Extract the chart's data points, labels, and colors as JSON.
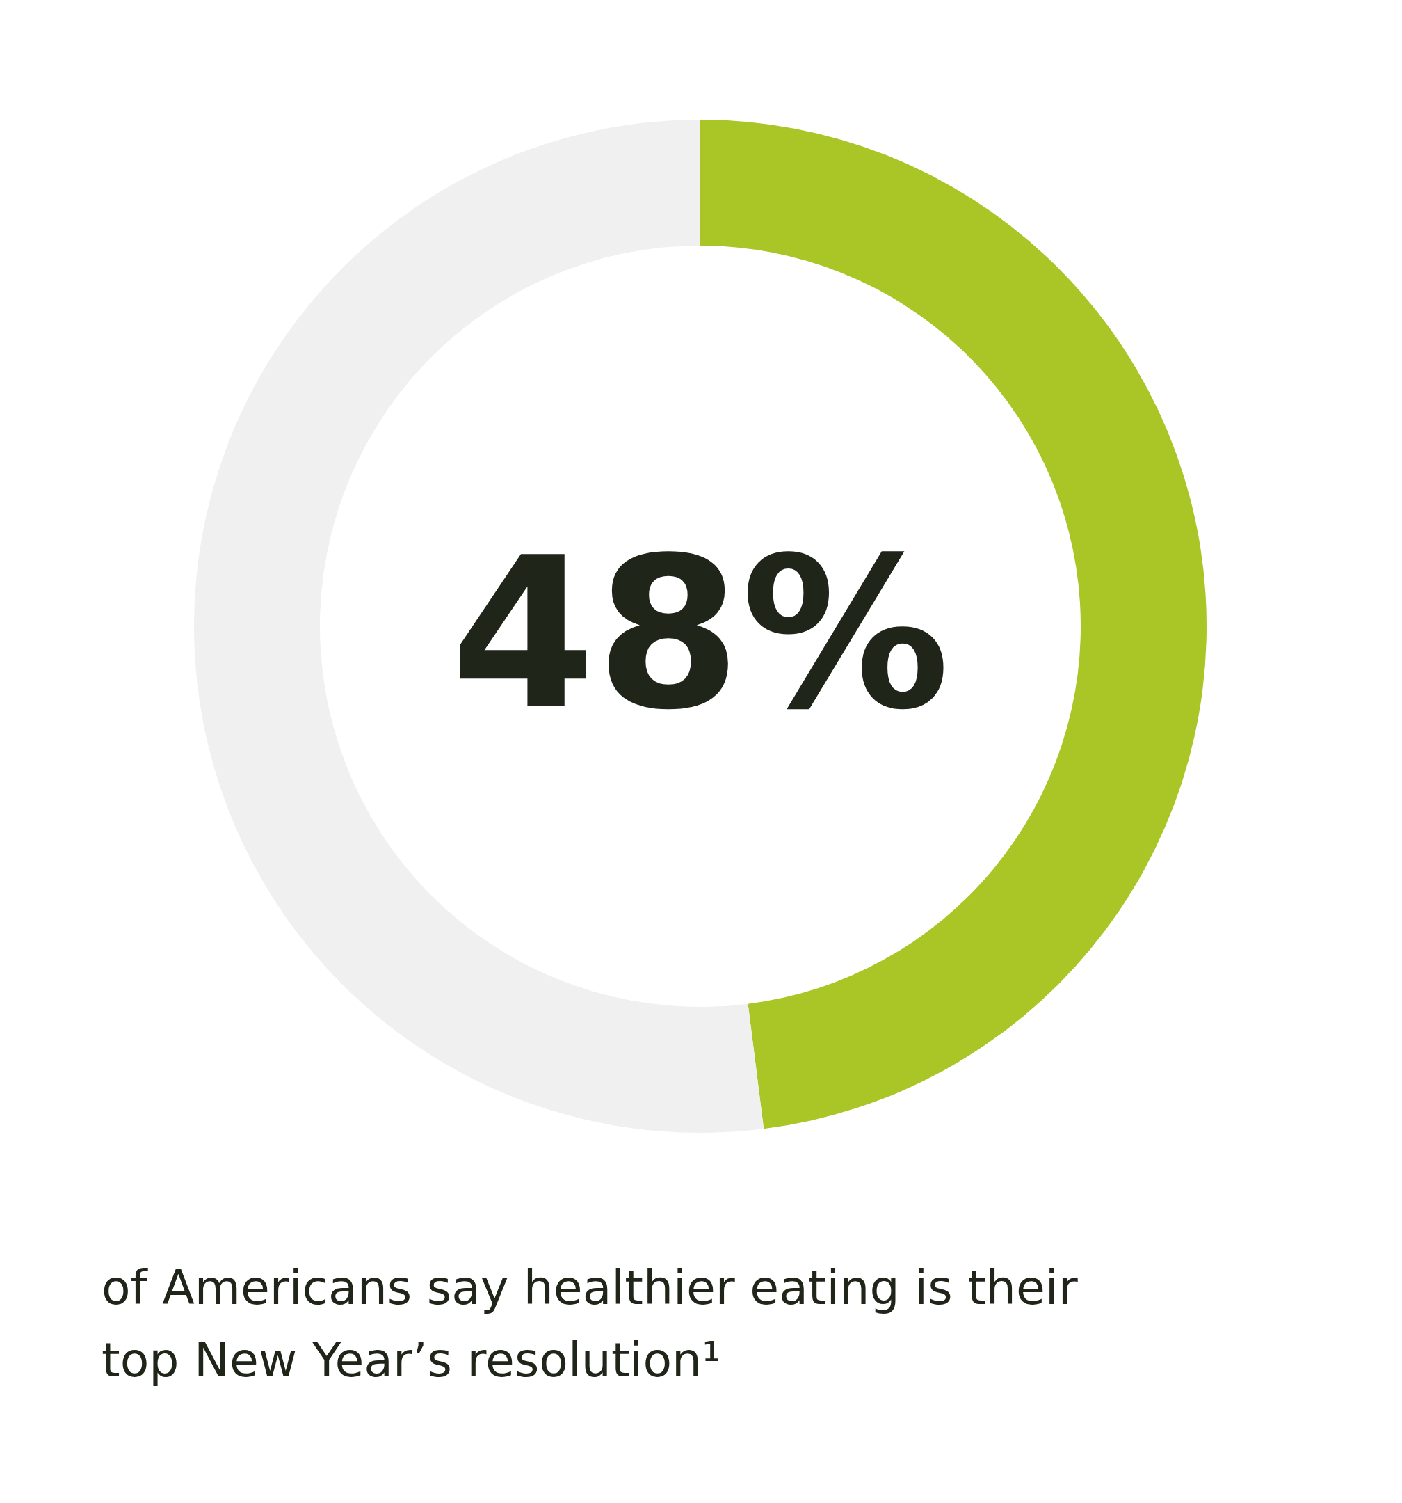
{
  "chart_data": {
    "type": "donut",
    "categories": [
      null,
      null
    ],
    "values": [
      48,
      52
    ],
    "colors": [
      "#a9c626",
      "#f0f0f0"
    ],
    "value_labels": [
      "48%",
      null
    ],
    "annotations": [
      "of Americans say healthier eating is their top New Year’s resolution¹"
    ]
  }
}
